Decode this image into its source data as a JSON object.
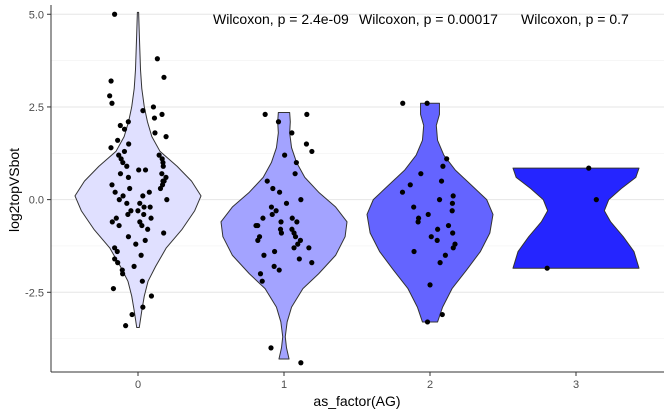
{
  "chart_data": {
    "type": "violin",
    "xlabel": "as_factor(AG)",
    "ylabel": "log2topVSbot",
    "categories": [
      "0",
      "1",
      "2",
      "3"
    ],
    "y_ticks": [
      -2.5,
      0.0,
      2.5,
      5.0
    ],
    "y_tick_labels": [
      "-2.5",
      "0.0",
      "2.5",
      "5.0"
    ],
    "ylim": [
      -4.65,
      5.25
    ],
    "grid": "horizontal major gridlines",
    "violin_fills": [
      "#e0e0ff",
      "#a3a3ff",
      "#6464ff",
      "#2525ff"
    ],
    "violin_outline": "#333333",
    "point_color": "#000000",
    "annotations": [
      "Wilcoxon, p = 2.4e-09",
      "Wilcoxon, p = 0.00017",
      "Wilcoxon, p = 0.7"
    ],
    "groups": [
      {
        "category": "0",
        "range": [
          -3.45,
          5.05
        ],
        "density_profile": [
          [
            -3.45,
            0.02
          ],
          [
            -3.0,
            0.06
          ],
          [
            -2.6,
            0.1
          ],
          [
            -2.2,
            0.16
          ],
          [
            -1.8,
            0.28
          ],
          [
            -1.3,
            0.45
          ],
          [
            -0.8,
            0.7
          ],
          [
            -0.3,
            0.9
          ],
          [
            0.1,
            1.0
          ],
          [
            0.5,
            0.85
          ],
          [
            0.9,
            0.62
          ],
          [
            1.3,
            0.35
          ],
          [
            1.7,
            0.22
          ],
          [
            2.1,
            0.15
          ],
          [
            2.5,
            0.1
          ],
          [
            3.0,
            0.06
          ],
          [
            3.5,
            0.04
          ],
          [
            4.0,
            0.03
          ],
          [
            4.5,
            0.02
          ],
          [
            5.05,
            0.01
          ]
        ],
        "points": [
          5.0,
          3.8,
          3.3,
          3.2,
          2.8,
          2.6,
          2.5,
          2.4,
          2.3,
          2.2,
          2.1,
          2.0,
          1.9,
          1.8,
          1.7,
          1.6,
          1.5,
          1.4,
          1.3,
          1.2,
          1.2,
          1.1,
          1.1,
          1.0,
          1.0,
          0.9,
          0.9,
          0.8,
          0.8,
          0.7,
          0.7,
          0.6,
          0.6,
          0.5,
          0.5,
          0.4,
          0.4,
          0.3,
          0.3,
          0.2,
          0.2,
          0.1,
          0.1,
          0.0,
          0.0,
          -0.1,
          -0.1,
          -0.2,
          -0.2,
          -0.3,
          -0.3,
          -0.4,
          -0.4,
          -0.5,
          -0.5,
          -0.6,
          -0.6,
          -0.7,
          -0.7,
          -0.8,
          -0.9,
          -1.0,
          -1.1,
          -1.2,
          -1.3,
          -1.4,
          -1.5,
          -1.6,
          -1.7,
          -1.8,
          -1.9,
          -2.0,
          -2.2,
          -2.4,
          -2.6,
          -2.9,
          -3.1,
          -3.4
        ]
      },
      {
        "category": "1",
        "range": [
          -4.3,
          2.35
        ],
        "density_profile": [
          [
            -4.3,
            0.08
          ],
          [
            -4.0,
            0.04
          ],
          [
            -3.7,
            0.02
          ],
          [
            -3.3,
            0.05
          ],
          [
            -2.9,
            0.12
          ],
          [
            -2.4,
            0.3
          ],
          [
            -2.0,
            0.55
          ],
          [
            -1.5,
            0.82
          ],
          [
            -1.0,
            0.97
          ],
          [
            -0.6,
            1.0
          ],
          [
            -0.2,
            0.82
          ],
          [
            0.2,
            0.55
          ],
          [
            0.6,
            0.33
          ],
          [
            1.0,
            0.2
          ],
          [
            1.4,
            0.12
          ],
          [
            1.8,
            0.09
          ],
          [
            2.1,
            0.1
          ],
          [
            2.35,
            0.09
          ]
        ],
        "points": [
          2.3,
          2.3,
          2.1,
          1.8,
          1.5,
          1.3,
          1.2,
          1.0,
          0.7,
          0.5,
          0.3,
          0.2,
          0.0,
          -0.1,
          -0.2,
          -0.3,
          -0.4,
          -0.5,
          -0.5,
          -0.6,
          -0.6,
          -0.7,
          -0.7,
          -0.8,
          -0.8,
          -0.9,
          -0.9,
          -1.0,
          -1.0,
          -1.1,
          -1.1,
          -1.2,
          -1.3,
          -1.3,
          -1.4,
          -1.5,
          -1.6,
          -1.7,
          -1.8,
          -1.9,
          -2.0,
          -2.2,
          -4.0,
          -4.4
        ]
      },
      {
        "category": "2",
        "range": [
          -3.3,
          2.6
        ],
        "density_profile": [
          [
            -3.3,
            0.12
          ],
          [
            -2.9,
            0.2
          ],
          [
            -2.4,
            0.35
          ],
          [
            -1.9,
            0.58
          ],
          [
            -1.4,
            0.8
          ],
          [
            -0.9,
            0.95
          ],
          [
            -0.4,
            1.0
          ],
          [
            0.0,
            0.9
          ],
          [
            0.4,
            0.65
          ],
          [
            0.8,
            0.4
          ],
          [
            1.2,
            0.22
          ],
          [
            1.6,
            0.12
          ],
          [
            2.0,
            0.1
          ],
          [
            2.3,
            0.15
          ],
          [
            2.6,
            0.15
          ]
        ],
        "points": [
          2.6,
          2.6,
          1.1,
          0.9,
          0.7,
          0.5,
          0.4,
          0.2,
          0.1,
          0.0,
          -0.1,
          -0.2,
          -0.3,
          -0.4,
          -0.5,
          -0.6,
          -0.7,
          -0.8,
          -0.9,
          -1.0,
          -1.1,
          -1.2,
          -1.3,
          -1.4,
          -1.5,
          -1.7,
          -2.3,
          -3.1,
          -3.3
        ]
      },
      {
        "category": "3",
        "range": [
          -1.85,
          0.85
        ],
        "density_profile": [
          [
            -1.85,
            1.0
          ],
          [
            -1.4,
            0.92
          ],
          [
            -1.0,
            0.75
          ],
          [
            -0.6,
            0.55
          ],
          [
            -0.3,
            0.45
          ],
          [
            0.0,
            0.52
          ],
          [
            0.3,
            0.72
          ],
          [
            0.6,
            0.95
          ],
          [
            0.85,
            1.0
          ]
        ],
        "points": [
          0.85,
          0.0,
          -1.85
        ]
      }
    ]
  }
}
